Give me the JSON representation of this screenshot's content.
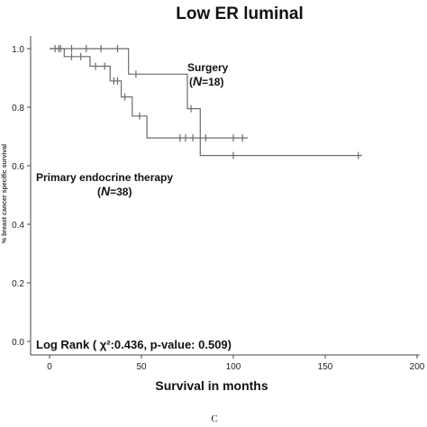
{
  "chart_data": {
    "type": "line",
    "subtype": "kaplan-meier",
    "title": "Low ER luminal",
    "xlabel": "Survival in months",
    "ylabel": "% breast cancer specific survival",
    "xlim": [
      0,
      200
    ],
    "ylim": [
      0,
      1.0
    ],
    "x_ticks": [
      0,
      50,
      100,
      150,
      200
    ],
    "x_tick_labels": [
      "0",
      "50",
      "100",
      "150",
      "200"
    ],
    "y_ticks": [
      0.0,
      0.2,
      0.4,
      0.6,
      0.8,
      1.0
    ],
    "y_tick_labels": [
      "0.0",
      "0.2",
      "0.4",
      "0.6",
      "0.8",
      "1.0"
    ],
    "grid": false,
    "line_color": "#6b6b6b",
    "series": [
      {
        "name": "Surgery",
        "n_label": "N",
        "n_value": "=18",
        "steps": [
          [
            0,
            1.0
          ],
          [
            43,
            1.0
          ],
          [
            43,
            0.913
          ],
          [
            75,
            0.913
          ],
          [
            75,
            0.795
          ],
          [
            82,
            0.795
          ],
          [
            82,
            0.635
          ],
          [
            170,
            0.635
          ]
        ],
        "censored": [
          [
            5,
            1.0
          ],
          [
            12,
            1.0
          ],
          [
            20,
            1.0
          ],
          [
            28,
            1.0
          ],
          [
            37,
            1.0
          ],
          [
            47,
            0.913
          ],
          [
            77,
            0.795
          ],
          [
            100,
            0.635
          ],
          [
            168,
            0.635
          ]
        ]
      },
      {
        "name": "Primary endocrine therapy",
        "n_label": "N",
        "n_value": "=38",
        "steps": [
          [
            0,
            1.0
          ],
          [
            8,
            1.0
          ],
          [
            8,
            0.973
          ],
          [
            22,
            0.973
          ],
          [
            22,
            0.94
          ],
          [
            33,
            0.94
          ],
          [
            33,
            0.89
          ],
          [
            39,
            0.89
          ],
          [
            39,
            0.835
          ],
          [
            45,
            0.835
          ],
          [
            45,
            0.77
          ],
          [
            53,
            0.77
          ],
          [
            53,
            0.695
          ],
          [
            108,
            0.695
          ]
        ],
        "censored": [
          [
            3,
            1.0
          ],
          [
            6,
            1.0
          ],
          [
            12,
            0.973
          ],
          [
            17,
            0.973
          ],
          [
            25,
            0.94
          ],
          [
            30,
            0.94
          ],
          [
            35,
            0.89
          ],
          [
            37,
            0.89
          ],
          [
            41,
            0.835
          ],
          [
            49,
            0.77
          ],
          [
            71,
            0.695
          ],
          [
            74,
            0.695
          ],
          [
            78,
            0.695
          ],
          [
            85,
            0.695
          ],
          [
            100,
            0.695
          ],
          [
            105,
            0.695
          ]
        ]
      }
    ],
    "annotations": {
      "log_rank": "Log Rank ( χ²:0.436, p-value: 0.509)"
    }
  },
  "panel_letter": "C"
}
